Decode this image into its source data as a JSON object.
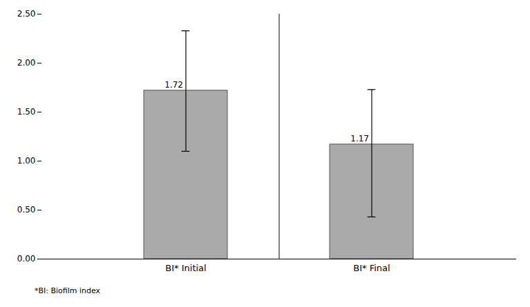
{
  "chart_data": {
    "type": "bar",
    "categories": [
      "BI* Initial",
      "BI* Final"
    ],
    "values": [
      1.72,
      1.17
    ],
    "error_lower": [
      0.62,
      0.74
    ],
    "error_upper": [
      0.61,
      0.56
    ],
    "data_labels": true,
    "color": "#aaaaaa",
    "ylim": [
      0,
      2.5
    ],
    "yticks": [
      {
        "value": 0,
        "label": "0.00"
      },
      {
        "value": 0.5,
        "label": "0.50"
      },
      {
        "value": 1,
        "label": "1.00"
      },
      {
        "value": 1.5,
        "label": "1.50"
      },
      {
        "value": 2,
        "label": "2.00"
      },
      {
        "value": 2.5,
        "label": "2.50"
      }
    ],
    "grid": false,
    "annotations": [
      "*BI: Biofilm index"
    ]
  }
}
